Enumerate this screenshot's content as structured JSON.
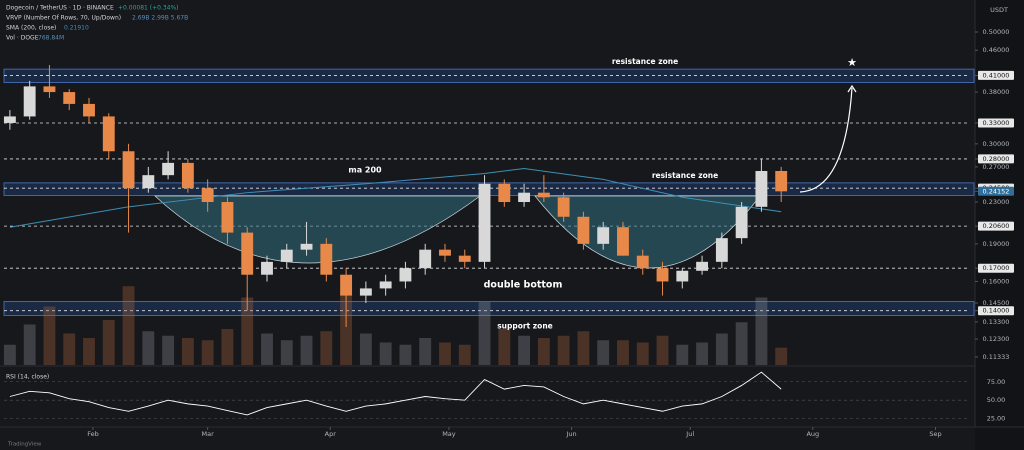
{
  "header": {
    "symbol": "Dogecoin / TetherUS · 1D · BINANCE",
    "change": "+0.00081 (+0.34%)",
    "vrvp": "VRVP (Number Of Rows, 70, Up/Down)",
    "vrvp_values": "2.69B  2.99B  5.67B",
    "sma": "SMA (200, close)",
    "sma_value": "0.21910",
    "vol": "Vol · DOGE",
    "vol_value": "768.84M",
    "currency": "USDT",
    "brand": "TradingView"
  },
  "chart_data": {
    "type": "candlestick",
    "log_scale": true,
    "up_color": "#d8d8d8",
    "down_color": "#e8894a",
    "ylim": [
      0.11,
      0.52
    ],
    "yticks": [
      {
        "value": 0.5,
        "label": "0.50000"
      },
      {
        "value": 0.46,
        "label": "0.46000"
      },
      {
        "value": 0.41,
        "label": "0.41000",
        "boxed": true
      },
      {
        "value": 0.38,
        "label": "0.38000"
      },
      {
        "value": 0.33,
        "label": "0.33000",
        "boxed": true
      },
      {
        "value": 0.3,
        "label": "0.30000"
      },
      {
        "value": 0.28,
        "label": "0.28000",
        "boxed": true
      },
      {
        "value": 0.27,
        "label": "0.27000"
      },
      {
        "value": 0.245,
        "label": "0.24500",
        "boxed": true
      },
      {
        "value": 0.24152,
        "label": "0.24152",
        "last": true
      },
      {
        "value": 0.23,
        "label": "0.23000"
      },
      {
        "value": 0.206,
        "label": "0.20600",
        "boxed": true
      },
      {
        "value": 0.19,
        "label": "0.19000"
      },
      {
        "value": 0.17,
        "label": "0.17000",
        "boxed": true
      },
      {
        "value": 0.16,
        "label": "0.16000"
      },
      {
        "value": 0.145,
        "label": "0.14500"
      },
      {
        "value": 0.14,
        "label": "0.14000",
        "boxed": true
      },
      {
        "value": 0.133,
        "label": "0.13300"
      },
      {
        "value": 0.123,
        "label": "0.12300"
      },
      {
        "value": 0.11333,
        "label": "0.11333"
      }
    ],
    "xlim": [
      7.5,
      254
    ],
    "xticks": [
      {
        "value": 31,
        "label": "Feb"
      },
      {
        "value": 60,
        "label": "Mar"
      },
      {
        "value": 91,
        "label": "Apr"
      },
      {
        "value": 121,
        "label": "May"
      },
      {
        "value": 152,
        "label": "Jun"
      },
      {
        "value": 182,
        "label": "Jul"
      },
      {
        "value": 213,
        "label": "Aug"
      },
      {
        "value": 244,
        "label": "Sep"
      }
    ],
    "ohlc": {
      "x": [
        10,
        15,
        20,
        25,
        30,
        35,
        40,
        45,
        50,
        55,
        60,
        65,
        70,
        75,
        80,
        85,
        90,
        95,
        100,
        105,
        110,
        115,
        120,
        125,
        130,
        135,
        140,
        145,
        150,
        155,
        160,
        165,
        170,
        175,
        180,
        185,
        190,
        195,
        200,
        205
      ],
      "open": [
        0.33,
        0.34,
        0.39,
        0.38,
        0.36,
        0.34,
        0.29,
        0.245,
        0.26,
        0.275,
        0.245,
        0.23,
        0.2,
        0.165,
        0.175,
        0.185,
        0.19,
        0.165,
        0.15,
        0.155,
        0.16,
        0.17,
        0.185,
        0.18,
        0.175,
        0.25,
        0.23,
        0.24,
        0.235,
        0.215,
        0.19,
        0.205,
        0.18,
        0.17,
        0.16,
        0.168,
        0.175,
        0.195,
        0.225,
        0.265
      ],
      "high": [
        0.35,
        0.4,
        0.43,
        0.385,
        0.37,
        0.345,
        0.3,
        0.27,
        0.29,
        0.28,
        0.255,
        0.235,
        0.205,
        0.18,
        0.19,
        0.21,
        0.195,
        0.17,
        0.16,
        0.165,
        0.175,
        0.19,
        0.19,
        0.185,
        0.26,
        0.255,
        0.25,
        0.26,
        0.24,
        0.22,
        0.21,
        0.21,
        0.185,
        0.175,
        0.17,
        0.18,
        0.2,
        0.23,
        0.28,
        0.27
      ],
      "low": [
        0.32,
        0.335,
        0.37,
        0.35,
        0.33,
        0.28,
        0.2,
        0.24,
        0.255,
        0.24,
        0.22,
        0.19,
        0.14,
        0.16,
        0.17,
        0.18,
        0.16,
        0.13,
        0.145,
        0.15,
        0.155,
        0.165,
        0.175,
        0.17,
        0.17,
        0.225,
        0.225,
        0.23,
        0.21,
        0.185,
        0.185,
        0.18,
        0.165,
        0.15,
        0.155,
        0.165,
        0.17,
        0.19,
        0.22,
        0.23
      ],
      "close": [
        0.34,
        0.39,
        0.38,
        0.36,
        0.34,
        0.29,
        0.245,
        0.26,
        0.275,
        0.245,
        0.23,
        0.2,
        0.165,
        0.175,
        0.185,
        0.19,
        0.165,
        0.15,
        0.155,
        0.16,
        0.17,
        0.185,
        0.18,
        0.175,
        0.25,
        0.23,
        0.24,
        0.235,
        0.215,
        0.19,
        0.205,
        0.18,
        0.17,
        0.16,
        0.168,
        0.175,
        0.195,
        0.225,
        0.265,
        0.2415
      ]
    },
    "volume": {
      "vlim": [
        0,
        4000
      ],
      "values": [
        900,
        1800,
        2600,
        1400,
        1200,
        2000,
        3500,
        1500,
        1300,
        1200,
        1100,
        1600,
        3000,
        1400,
        1100,
        1300,
        1500,
        3200,
        1400,
        1000,
        900,
        1200,
        1000,
        900,
        2800,
        1600,
        1300,
        1200,
        1300,
        1500,
        1100,
        1100,
        1000,
        1300,
        900,
        1000,
        1400,
        1900,
        3000,
        768.84
      ]
    },
    "sma": {
      "name": "ma 200",
      "color": "#3d8fb8",
      "x": [
        10,
        40,
        70,
        100,
        130,
        140,
        160,
        180,
        205
      ],
      "values": [
        0.205,
        0.225,
        0.24,
        0.25,
        0.262,
        0.268,
        0.255,
        0.235,
        0.22
      ]
    },
    "zones": [
      {
        "label": "resistance zone",
        "range": [
          0.397,
          0.422
        ]
      },
      {
        "label": "resistance zone",
        "range": [
          0.237,
          0.251
        ]
      },
      {
        "label": "support zone",
        "range": [
          0.137,
          0.146
        ]
      }
    ],
    "annotations": [
      "ma 200",
      "double bottom"
    ],
    "rsi": {
      "title": "RSI (14, close)",
      "color": "#ffffff",
      "ylim": [
        15,
        95
      ],
      "yticks": [
        {
          "value": 75,
          "label": "75.00"
        },
        {
          "value": 50,
          "label": "50.00"
        },
        {
          "value": 25,
          "label": "25.00"
        }
      ],
      "values": [
        55,
        62,
        60,
        52,
        48,
        40,
        35,
        42,
        50,
        45,
        42,
        36,
        30,
        40,
        45,
        50,
        42,
        35,
        42,
        45,
        50,
        55,
        52,
        50,
        78,
        65,
        70,
        68,
        55,
        45,
        50,
        45,
        40,
        35,
        42,
        45,
        55,
        70,
        88,
        65
      ]
    }
  }
}
